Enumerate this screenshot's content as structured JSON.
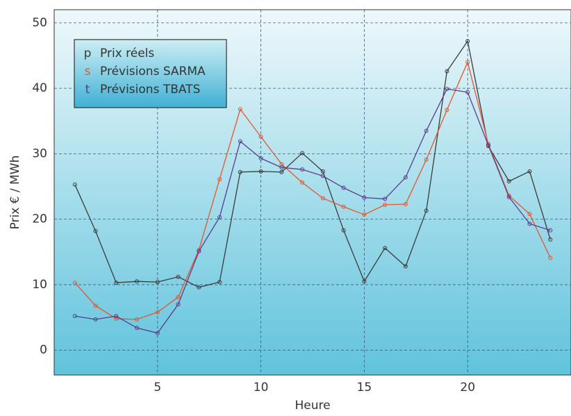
{
  "chart_data": {
    "type": "line",
    "x_label": "Heure",
    "y_label": "Prix € / MWh",
    "x": [
      1,
      2,
      3,
      4,
      5,
      6,
      7,
      8,
      9,
      10,
      11,
      12,
      13,
      14,
      15,
      16,
      17,
      18,
      19,
      20,
      21,
      22,
      23,
      24
    ],
    "series": [
      {
        "name": "Prix réels",
        "marker": "p",
        "color": "#3a3a3a",
        "values": [
          25.3,
          18.2,
          10.3,
          10.5,
          10.4,
          11.2,
          9.6,
          10.4,
          27.2,
          27.3,
          27.2,
          30.1,
          27.3,
          18.3,
          10.5,
          15.6,
          12.8,
          21.3,
          42.6,
          47.2,
          31.2,
          25.8,
          27.3,
          16.9
        ]
      },
      {
        "name": "Prévisions SARMA",
        "marker": "s",
        "color": "#e8542a",
        "values": [
          10.3,
          6.8,
          4.8,
          4.7,
          5.8,
          8.1,
          15.3,
          26.1,
          36.8,
          32.6,
          28.4,
          25.6,
          23.2,
          21.9,
          20.7,
          22.2,
          22.3,
          29.1,
          36.7,
          44.0,
          31.5,
          23.6,
          20.8,
          14.1
        ]
      },
      {
        "name": "Prévisions TBATS",
        "marker": "t",
        "color": "#5a3a8c",
        "values": [
          5.2,
          4.7,
          5.2,
          3.4,
          2.6,
          7.0,
          15.1,
          20.3,
          31.9,
          29.3,
          27.9,
          27.6,
          26.6,
          24.8,
          23.3,
          23.1,
          26.4,
          33.5,
          39.9,
          39.4,
          31.3,
          23.4,
          19.3,
          18.3
        ]
      }
    ],
    "xlim": [
      0,
      25
    ],
    "ylim": [
      -3.8,
      52
    ],
    "xticks": [
      5,
      10,
      15,
      20
    ],
    "yticks": [
      0,
      10,
      20,
      30,
      40,
      50
    ],
    "grid": true
  }
}
